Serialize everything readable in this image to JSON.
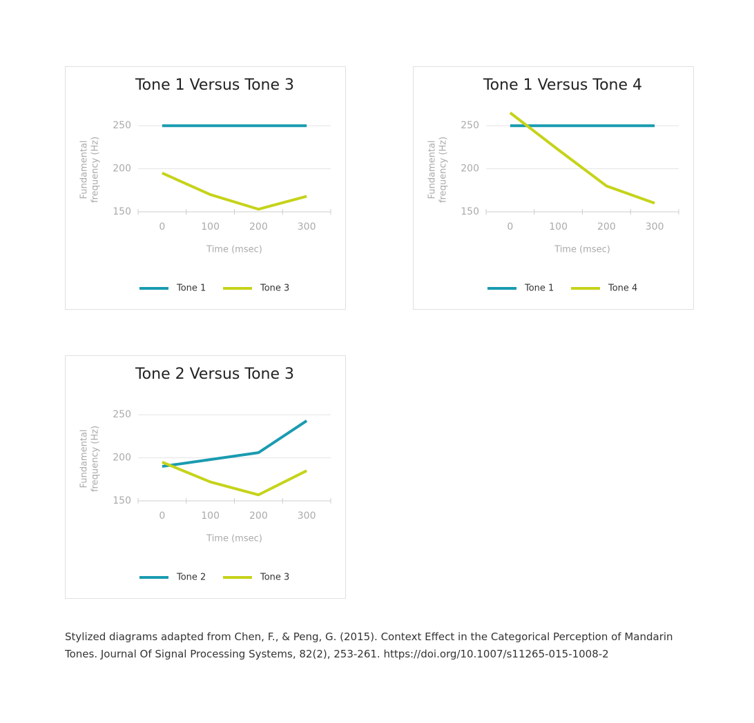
{
  "chart_data": [
    {
      "type": "line",
      "title": "Tone 1 Versus Tone 3",
      "x_label": "Time (msec)",
      "y_label": [
        "Fundamental",
        "frequency (Hz)"
      ],
      "categories": [
        "0",
        "100",
        "200",
        "300"
      ],
      "series": [
        {
          "name": "Tone 1",
          "color": "#1a9bb0",
          "values": [
            250,
            250,
            250,
            250
          ]
        },
        {
          "name": "Tone 3",
          "color": "#c5d31a",
          "values": [
            195,
            170,
            153,
            168
          ]
        }
      ],
      "ylim": [
        150,
        275
      ],
      "yticks": [
        150,
        200,
        250
      ],
      "grid": true,
      "legend": "bottom"
    },
    {
      "type": "line",
      "title": "Tone 1 Versus Tone 4",
      "x_label": "Time (msec)",
      "y_label": [
        "Fundamental",
        "frequency (Hz)"
      ],
      "categories": [
        "0",
        "100",
        "200",
        "300"
      ],
      "series": [
        {
          "name": "Tone 1",
          "color": "#1a9bb0",
          "values": [
            250,
            250,
            250,
            250
          ]
        },
        {
          "name": "Tone 4",
          "color": "#c5d31a",
          "values": [
            265,
            222,
            180,
            160
          ]
        }
      ],
      "ylim": [
        150,
        275
      ],
      "yticks": [
        150,
        200,
        250
      ],
      "grid": true,
      "legend": "bottom"
    },
    {
      "type": "line",
      "title": "Tone 2 Versus Tone 3",
      "x_label": "Time (msec)",
      "y_label": [
        "Fundamental",
        "frequency (Hz)"
      ],
      "categories": [
        "0",
        "100",
        "200",
        "300"
      ],
      "series": [
        {
          "name": "Tone 2",
          "color": "#1a9bb0",
          "values": [
            190,
            198,
            206,
            243
          ]
        },
        {
          "name": "Tone 3",
          "color": "#c5d31a",
          "values": [
            195,
            172,
            157,
            185
          ]
        }
      ],
      "ylim": [
        150,
        275
      ],
      "yticks": [
        150,
        200,
        250
      ],
      "grid": true,
      "legend": "bottom"
    }
  ],
  "caption": "Stylized diagrams adapted from Chen, F., & Peng, G. (2015). Context Effect in the Categorical Perception of Mandarin Tones. Journal Of Signal Processing Systems, 82(2), 253-261. https://doi.org/10.1007/s11265-015-1008-2"
}
